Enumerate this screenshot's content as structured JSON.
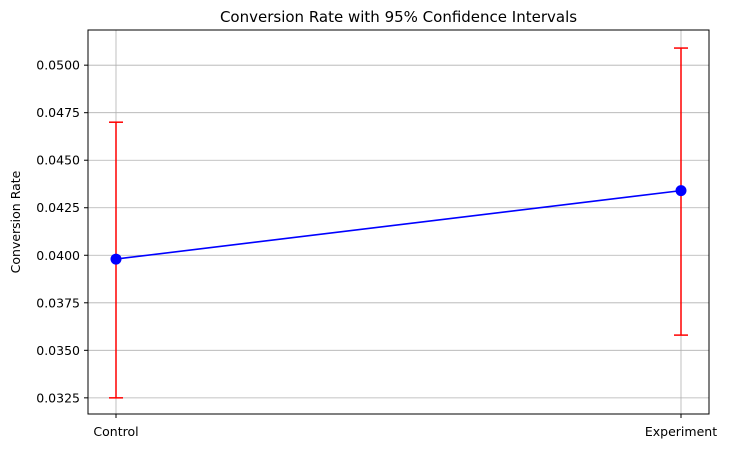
{
  "chart_data": {
    "type": "line",
    "title": "Conversion Rate with 95% Confidence Intervals",
    "xlabel": "",
    "ylabel": "Conversion Rate",
    "categories": [
      "Control",
      "Experiment"
    ],
    "series": [
      {
        "values": [
          0.0398,
          0.0434
        ],
        "ci_lower": [
          0.0325,
          0.0358
        ],
        "ci_upper": [
          0.047,
          0.0509
        ],
        "line_color": "#0000ff",
        "marker_color": "#0000ff",
        "errorbar_color": "#ff0000"
      }
    ],
    "ylim": [
      0.03165,
      0.05185
    ],
    "yticks": [
      0.0325,
      0.035,
      0.0375,
      0.04,
      0.0425,
      0.045,
      0.0475,
      0.05
    ],
    "ytick_labels": [
      "0.0325",
      "0.0350",
      "0.0375",
      "0.0400",
      "0.0425",
      "0.0450",
      "0.0475",
      "0.0500"
    ],
    "grid": true,
    "legend": "none"
  }
}
